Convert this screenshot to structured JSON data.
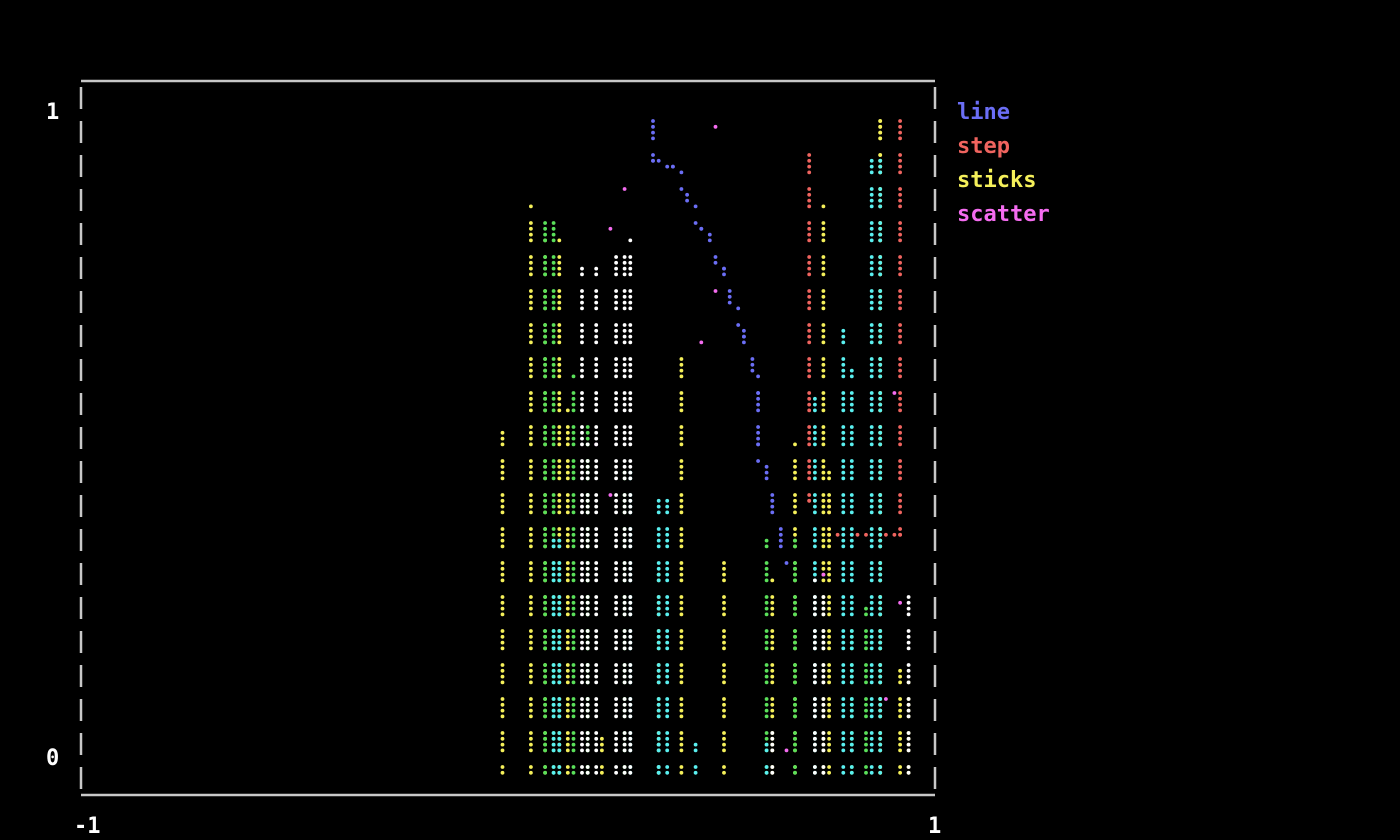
{
  "chart_data": {
    "type": "line",
    "xlim": [
      -1,
      1
    ],
    "ylim": [
      0,
      1
    ],
    "x_ticks": [
      "-1",
      "1"
    ],
    "y_ticks": [
      "1",
      "0"
    ],
    "grid": false,
    "legend_position": "right",
    "series": [
      {
        "name": "line",
        "kind": "line",
        "color": "#6b6ef5",
        "points": [
          [
            0.35,
            1.0
          ],
          [
            0.35,
            0.93
          ],
          [
            0.4,
            0.92
          ],
          [
            0.46,
            0.83
          ],
          [
            0.52,
            0.76
          ],
          [
            0.56,
            0.66
          ],
          [
            0.59,
            0.58
          ],
          [
            0.6,
            0.5
          ],
          [
            0.63,
            0.42
          ],
          [
            0.65,
            0.35
          ],
          [
            0.66,
            0.32
          ]
        ]
      },
      {
        "name": "step",
        "kind": "step",
        "color": "#f0645f",
        "points": [
          [
            0.71,
            0.95
          ],
          [
            0.71,
            0.42
          ],
          [
            0.76,
            0.42
          ],
          [
            0.76,
            0.37
          ],
          [
            0.93,
            0.37
          ],
          [
            0.93,
            1.0
          ]
        ]
      },
      {
        "name": "sticks",
        "kind": "sticks",
        "color": "#f5f05a",
        "points": [
          [
            -0.01,
            0.52
          ],
          [
            0.055,
            0.86
          ],
          [
            0.1,
            0.8
          ],
          [
            0.125,
            0.8
          ],
          [
            0.145,
            0.55
          ],
          [
            0.235,
            0.05
          ],
          [
            0.36,
            0.3
          ],
          [
            0.405,
            0.63
          ],
          [
            0.51,
            0.33
          ],
          [
            0.625,
            0.28
          ],
          [
            0.685,
            0.5
          ],
          [
            0.74,
            0.86
          ],
          [
            0.77,
            0.45
          ],
          [
            0.875,
            1.0
          ],
          [
            0.89,
            1.0
          ],
          [
            0.93,
            0.16
          ],
          [
            0.945,
            0.13
          ]
        ]
      },
      {
        "name": "scatter",
        "kind": "scatter",
        "color": "#f56cf0",
        "points": [
          [
            0.49,
            0.99
          ],
          [
            0.28,
            0.9
          ],
          [
            0.47,
            0.65
          ],
          [
            0.86,
            0.57
          ],
          [
            0.92,
            0.58
          ],
          [
            0.93,
            0.26
          ],
          [
            0.75,
            0.3
          ],
          [
            0.9,
            0.12
          ],
          [
            0.82,
            0.03
          ],
          [
            0.67,
            0.03
          ],
          [
            0.21,
            0.49
          ],
          [
            0.24,
            0.43
          ],
          [
            0.25,
            0.83
          ],
          [
            0.5,
            0.74
          ]
        ]
      },
      {
        "kind": "sticks",
        "color": "#5ae05a",
        "points": [
          [
            0.09,
            0.85
          ],
          [
            0.105,
            0.85
          ],
          [
            0.165,
            0.6
          ],
          [
            0.185,
            0.53
          ],
          [
            0.2,
            0.5
          ],
          [
            0.27,
            0.45
          ],
          [
            0.61,
            0.35
          ],
          [
            0.68,
            0.35
          ],
          [
            0.82,
            0.22
          ],
          [
            0.85,
            0.25
          ]
        ]
      },
      {
        "kind": "sticks",
        "color": "#5af0f0",
        "points": [
          [
            0.11,
            0.35
          ],
          [
            0.125,
            0.35
          ],
          [
            0.295,
            0.45
          ],
          [
            0.355,
            0.41
          ],
          [
            0.375,
            0.41
          ],
          [
            0.73,
            0.57
          ],
          [
            0.79,
            0.68
          ],
          [
            0.815,
            0.61
          ],
          [
            0.87,
            0.94
          ],
          [
            0.885,
            0.94
          ],
          [
            0.36,
            0.04
          ],
          [
            0.45,
            0.04
          ],
          [
            0.62,
            0.04
          ]
        ]
      },
      {
        "kind": "sticks",
        "color": "#ffffff",
        "points": [
          [
            0.18,
            0.77
          ],
          [
            0.205,
            0.77
          ],
          [
            0.255,
            0.79
          ],
          [
            0.27,
            0.79
          ],
          [
            0.3,
            0.81
          ],
          [
            0.2,
            0.49
          ],
          [
            0.625,
            0.07
          ],
          [
            0.725,
            0.28
          ],
          [
            0.74,
            0.27
          ],
          [
            0.95,
            0.27
          ]
        ]
      }
    ]
  }
}
